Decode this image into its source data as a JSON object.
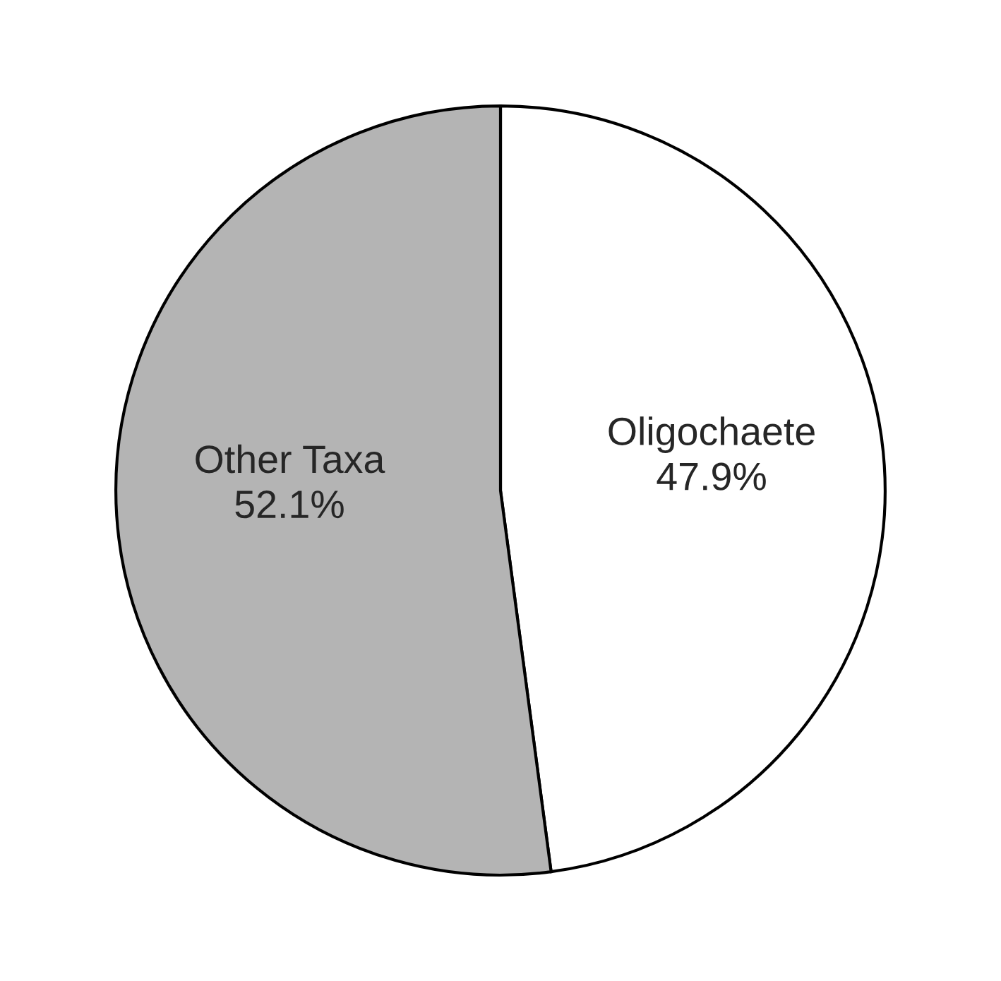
{
  "chart_data": {
    "type": "pie",
    "categories": [
      "Oligochaete",
      "Other Taxa"
    ],
    "values": [
      47.9,
      52.1
    ],
    "value_labels": [
      "47.9%",
      "52.1%"
    ],
    "colors": [
      "#ffffff",
      "#b4b4b4"
    ]
  }
}
